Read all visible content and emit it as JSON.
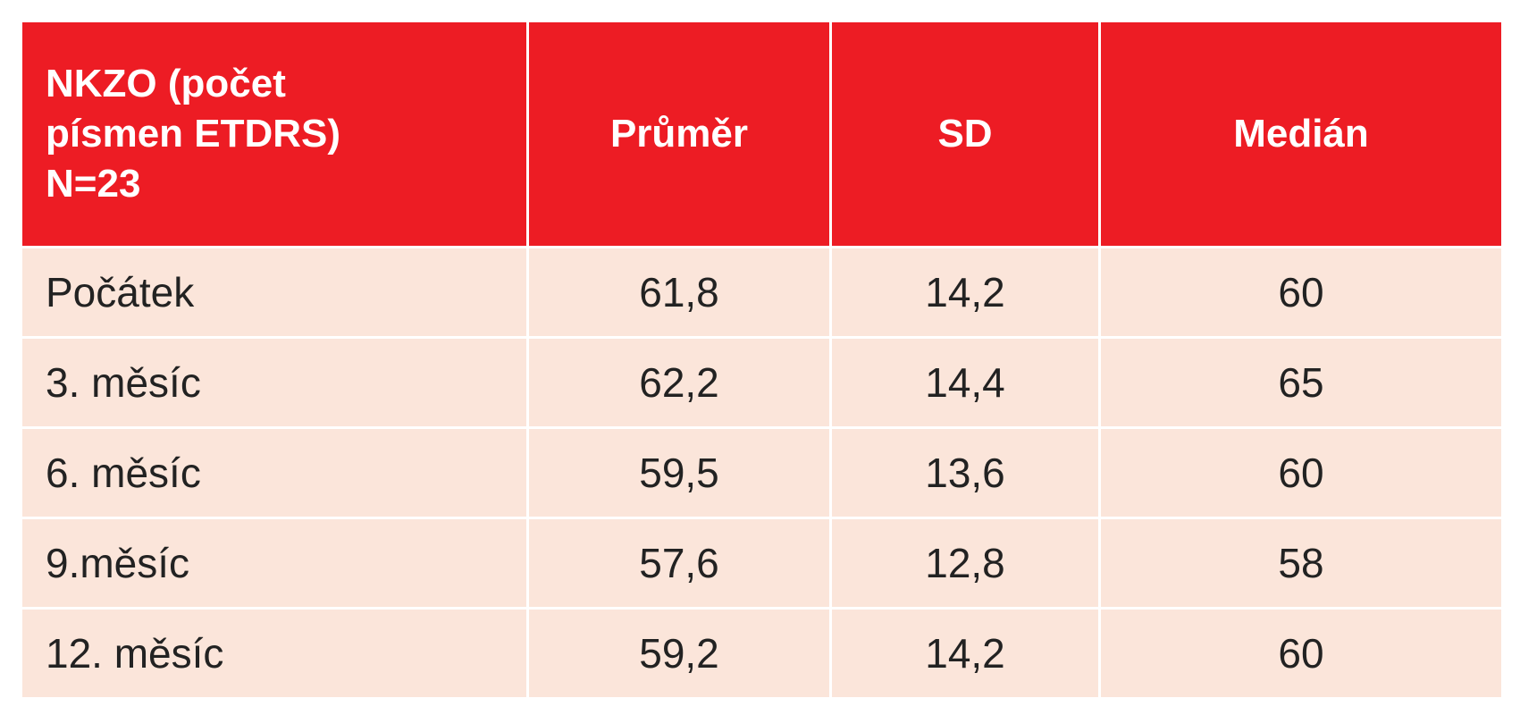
{
  "table": {
    "header": [
      [
        "NKZO (počet",
        "písmen ETDRS)",
        "N=23"
      ],
      "Průměr",
      "SD",
      "Medián"
    ],
    "rows": [
      [
        "Počátek",
        "61,8",
        "14,2",
        "60"
      ],
      [
        "3. měsíc",
        "62,2",
        "14,4",
        "65"
      ],
      [
        "6. měsíc",
        "59,5",
        "13,6",
        "60"
      ],
      [
        "9.měsíc",
        "57,6",
        "12,8",
        "58"
      ],
      [
        "12. měsíc",
        "59,2",
        "14,2",
        "60"
      ]
    ]
  }
}
